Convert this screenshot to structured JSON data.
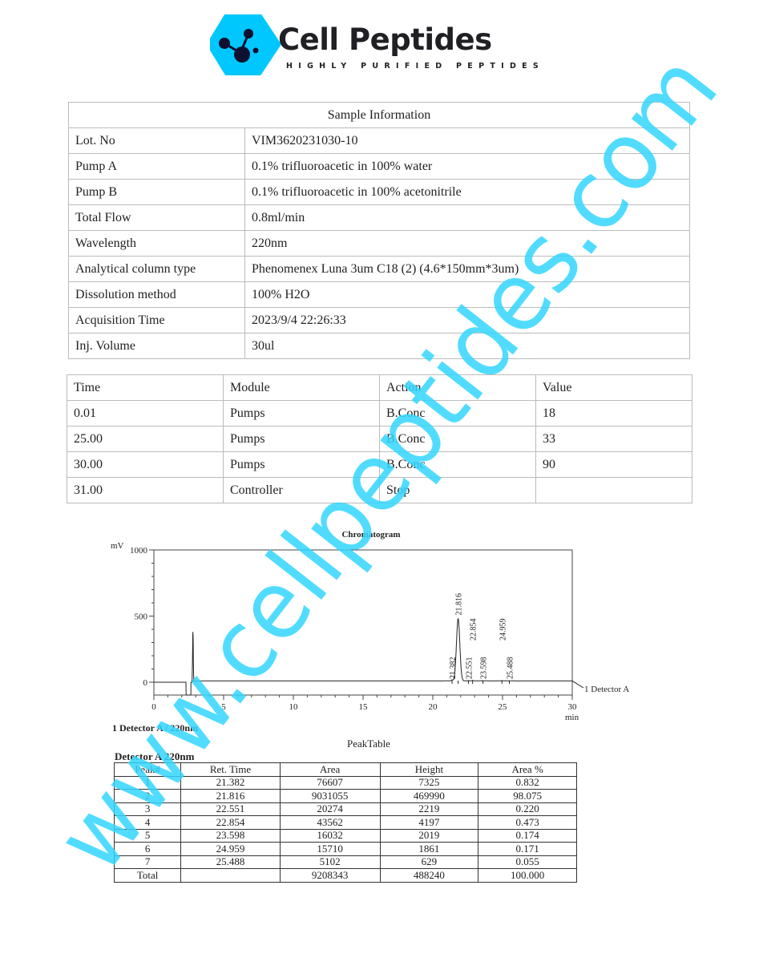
{
  "brand": {
    "name": "Cell Peptides",
    "tagline": "HIGHLY PURIFIED PEPTIDES",
    "colors": {
      "logo": "#00c8ff",
      "text": "#1f1f24",
      "watermark": "#33d6ff"
    }
  },
  "watermark": "www.cellpeptides.com",
  "sample_info": {
    "title": "Sample Information",
    "rows": [
      {
        "label": "Lot. No",
        "value": "VIM3620231030-10"
      },
      {
        "label": "Pump A",
        "value": "0.1% trifluoroacetic in 100% water"
      },
      {
        "label": "Pump B",
        "value": "0.1% trifluoroacetic in 100% acetonitrile"
      },
      {
        "label": "Total Flow",
        "value": "0.8ml/min"
      },
      {
        "label": "Wavelength",
        "value": "220nm"
      },
      {
        "label": "Analytical column type",
        "value": "Phenomenex Luna 3um C18 (2) (4.6*150mm*3um)"
      },
      {
        "label": "Dissolution method",
        "value": "100% H2O"
      },
      {
        "label": "Acquisition Time",
        "value": "2023/9/4  22:26:33"
      },
      {
        "label": "Inj. Volume",
        "value": "30ul"
      }
    ]
  },
  "program": {
    "headers": [
      "Time",
      "Module",
      "Action",
      "Value"
    ],
    "rows": [
      [
        "0.01",
        "Pumps",
        "B.Conc",
        "18"
      ],
      [
        "25.00",
        "Pumps",
        "B.Conc",
        "33"
      ],
      [
        "30.00",
        "Pumps",
        "B.Conc",
        "90"
      ],
      [
        "31.00",
        "Controller",
        "Stop",
        ""
      ]
    ]
  },
  "chart_data": {
    "type": "line",
    "title": "Chromatogram",
    "ylabel": "mV",
    "xlabel": "min",
    "xlim": [
      0,
      30
    ],
    "ylim": [
      0,
      1000
    ],
    "xticks": [
      "0",
      "5",
      "10",
      "15",
      "20",
      "25",
      "30"
    ],
    "yticks": [
      "0",
      "500",
      "1000"
    ],
    "series_label": "1 Detector A",
    "detector_note": "1 Detector A / 220nm",
    "grid": false,
    "solvent_front": {
      "time": 2.8,
      "height_mV": 380
    },
    "peaks": [
      {
        "time": 21.382,
        "height_mV": 7.3,
        "label": "21.382"
      },
      {
        "time": 21.816,
        "height_mV": 470.0,
        "label": "21.816"
      },
      {
        "time": 22.551,
        "height_mV": 2.2,
        "label": "22.551"
      },
      {
        "time": 22.854,
        "height_mV": 4.2,
        "label": "22.854"
      },
      {
        "time": 23.598,
        "height_mV": 2.0,
        "label": "23.598"
      },
      {
        "time": 24.959,
        "height_mV": 1.9,
        "label": "24.959"
      },
      {
        "time": 25.488,
        "height_mV": 0.6,
        "label": "25.488"
      }
    ]
  },
  "peak_table": {
    "title": "PeakTable",
    "subtitle": "Detector A 220nm",
    "headers": [
      "Peak#",
      "Ret. Time",
      "Area",
      "Height",
      "Area %"
    ],
    "rows": [
      [
        "1",
        "21.382",
        "76607",
        "7325",
        "0.832"
      ],
      [
        "2",
        "21.816",
        "9031055",
        "469990",
        "98.075"
      ],
      [
        "3",
        "22.551",
        "20274",
        "2219",
        "0.220"
      ],
      [
        "4",
        "22.854",
        "43562",
        "4197",
        "0.473"
      ],
      [
        "5",
        "23.598",
        "16032",
        "2019",
        "0.174"
      ],
      [
        "6",
        "24.959",
        "15710",
        "1861",
        "0.171"
      ],
      [
        "7",
        "25.488",
        "5102",
        "629",
        "0.055"
      ]
    ],
    "total": [
      "Total",
      "",
      "9208343",
      "488240",
      "100.000"
    ]
  }
}
